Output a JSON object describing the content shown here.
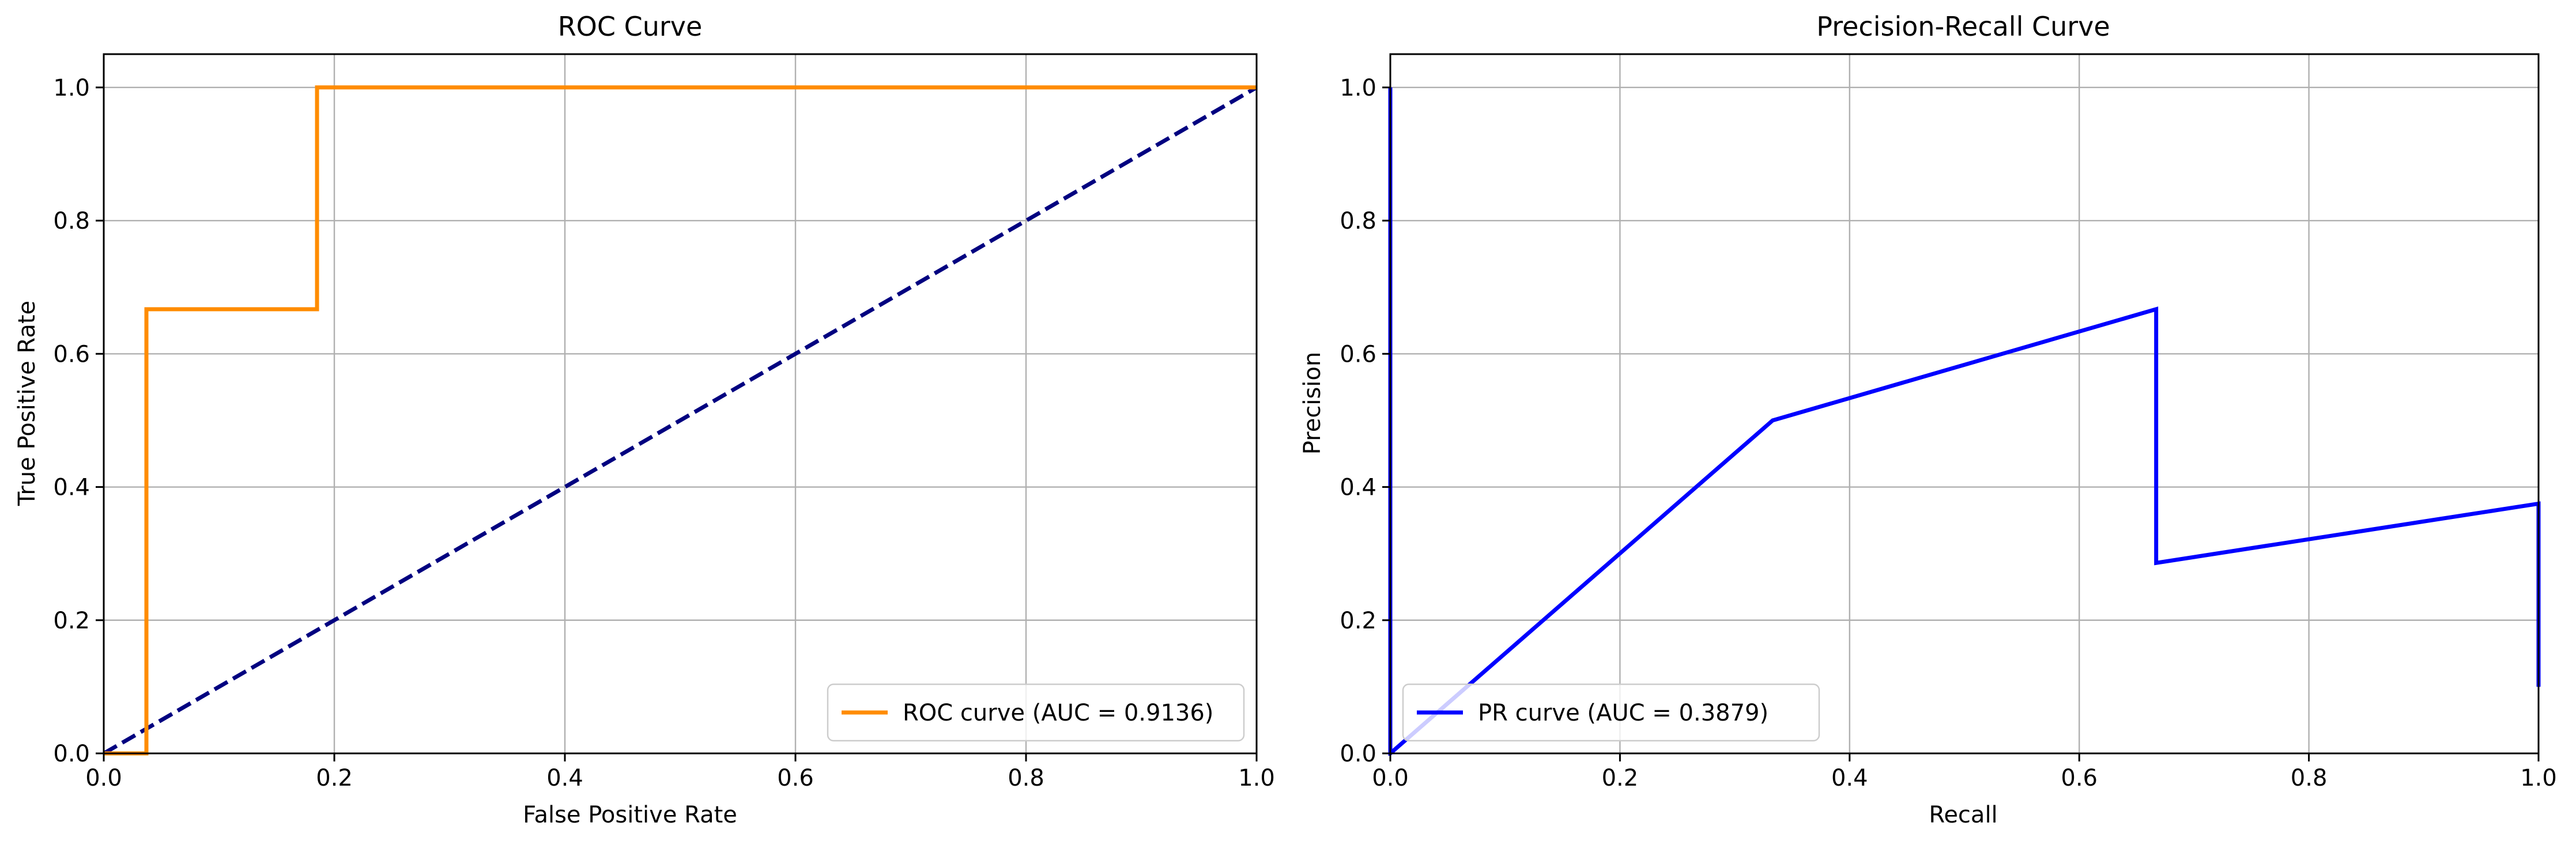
{
  "colors": {
    "roc": "#ff8c00",
    "diagonal": "#000080",
    "pr": "#0000ff",
    "grid": "#b0b0b0",
    "axis": "#000000",
    "legend_border": "#cccccc"
  },
  "chart_data": [
    {
      "type": "line",
      "title": "ROC Curve",
      "xlabel": "False Positive Rate",
      "ylabel": "True Positive Rate",
      "xlim": [
        0.0,
        1.0
      ],
      "ylim": [
        0.0,
        1.05
      ],
      "xticks": [
        0.0,
        0.2,
        0.4,
        0.6,
        0.8,
        1.0
      ],
      "yticks": [
        0.0,
        0.2,
        0.4,
        0.6,
        0.8,
        1.0
      ],
      "xtick_labels": [
        "0.0",
        "0.2",
        "0.4",
        "0.6",
        "0.8",
        "1.0"
      ],
      "ytick_labels": [
        "0.0",
        "0.2",
        "0.4",
        "0.6",
        "0.8",
        "1.0"
      ],
      "grid": true,
      "legend_position": "lower right",
      "series": [
        {
          "name": "ROC curve (AUC = 0.9136)",
          "color_key": "roc",
          "style": "solid",
          "x": [
            0.0,
            0.037,
            0.037,
            0.185,
            0.185,
            1.0
          ],
          "y": [
            0.0,
            0.0,
            0.667,
            0.667,
            1.0,
            1.0
          ]
        },
        {
          "color_key": "diagonal",
          "style": "dashed",
          "x": [
            0.0,
            1.0
          ],
          "y": [
            0.0,
            1.0
          ]
        }
      ]
    },
    {
      "type": "line",
      "title": "Precision-Recall Curve",
      "xlabel": "Recall",
      "ylabel": "Precision",
      "xlim": [
        0.0,
        1.0
      ],
      "ylim": [
        0.0,
        1.05
      ],
      "xticks": [
        0.0,
        0.2,
        0.4,
        0.6,
        0.8,
        1.0
      ],
      "yticks": [
        0.0,
        0.2,
        0.4,
        0.6,
        0.8,
        1.0
      ],
      "xtick_labels": [
        "0.0",
        "0.2",
        "0.4",
        "0.6",
        "0.8",
        "1.0"
      ],
      "ytick_labels": [
        "0.0",
        "0.2",
        "0.4",
        "0.6",
        "0.8",
        "1.0"
      ],
      "grid": true,
      "legend_position": "lower left",
      "series": [
        {
          "name": "PR curve (AUC = 0.3879)",
          "color_key": "pr",
          "style": "solid",
          "x": [
            1.0,
            1.0,
            0.667,
            0.667,
            0.333,
            0.0,
            0.0
          ],
          "y": [
            0.1,
            0.375,
            0.286,
            0.667,
            0.5,
            0.0,
            1.0
          ]
        }
      ]
    }
  ]
}
